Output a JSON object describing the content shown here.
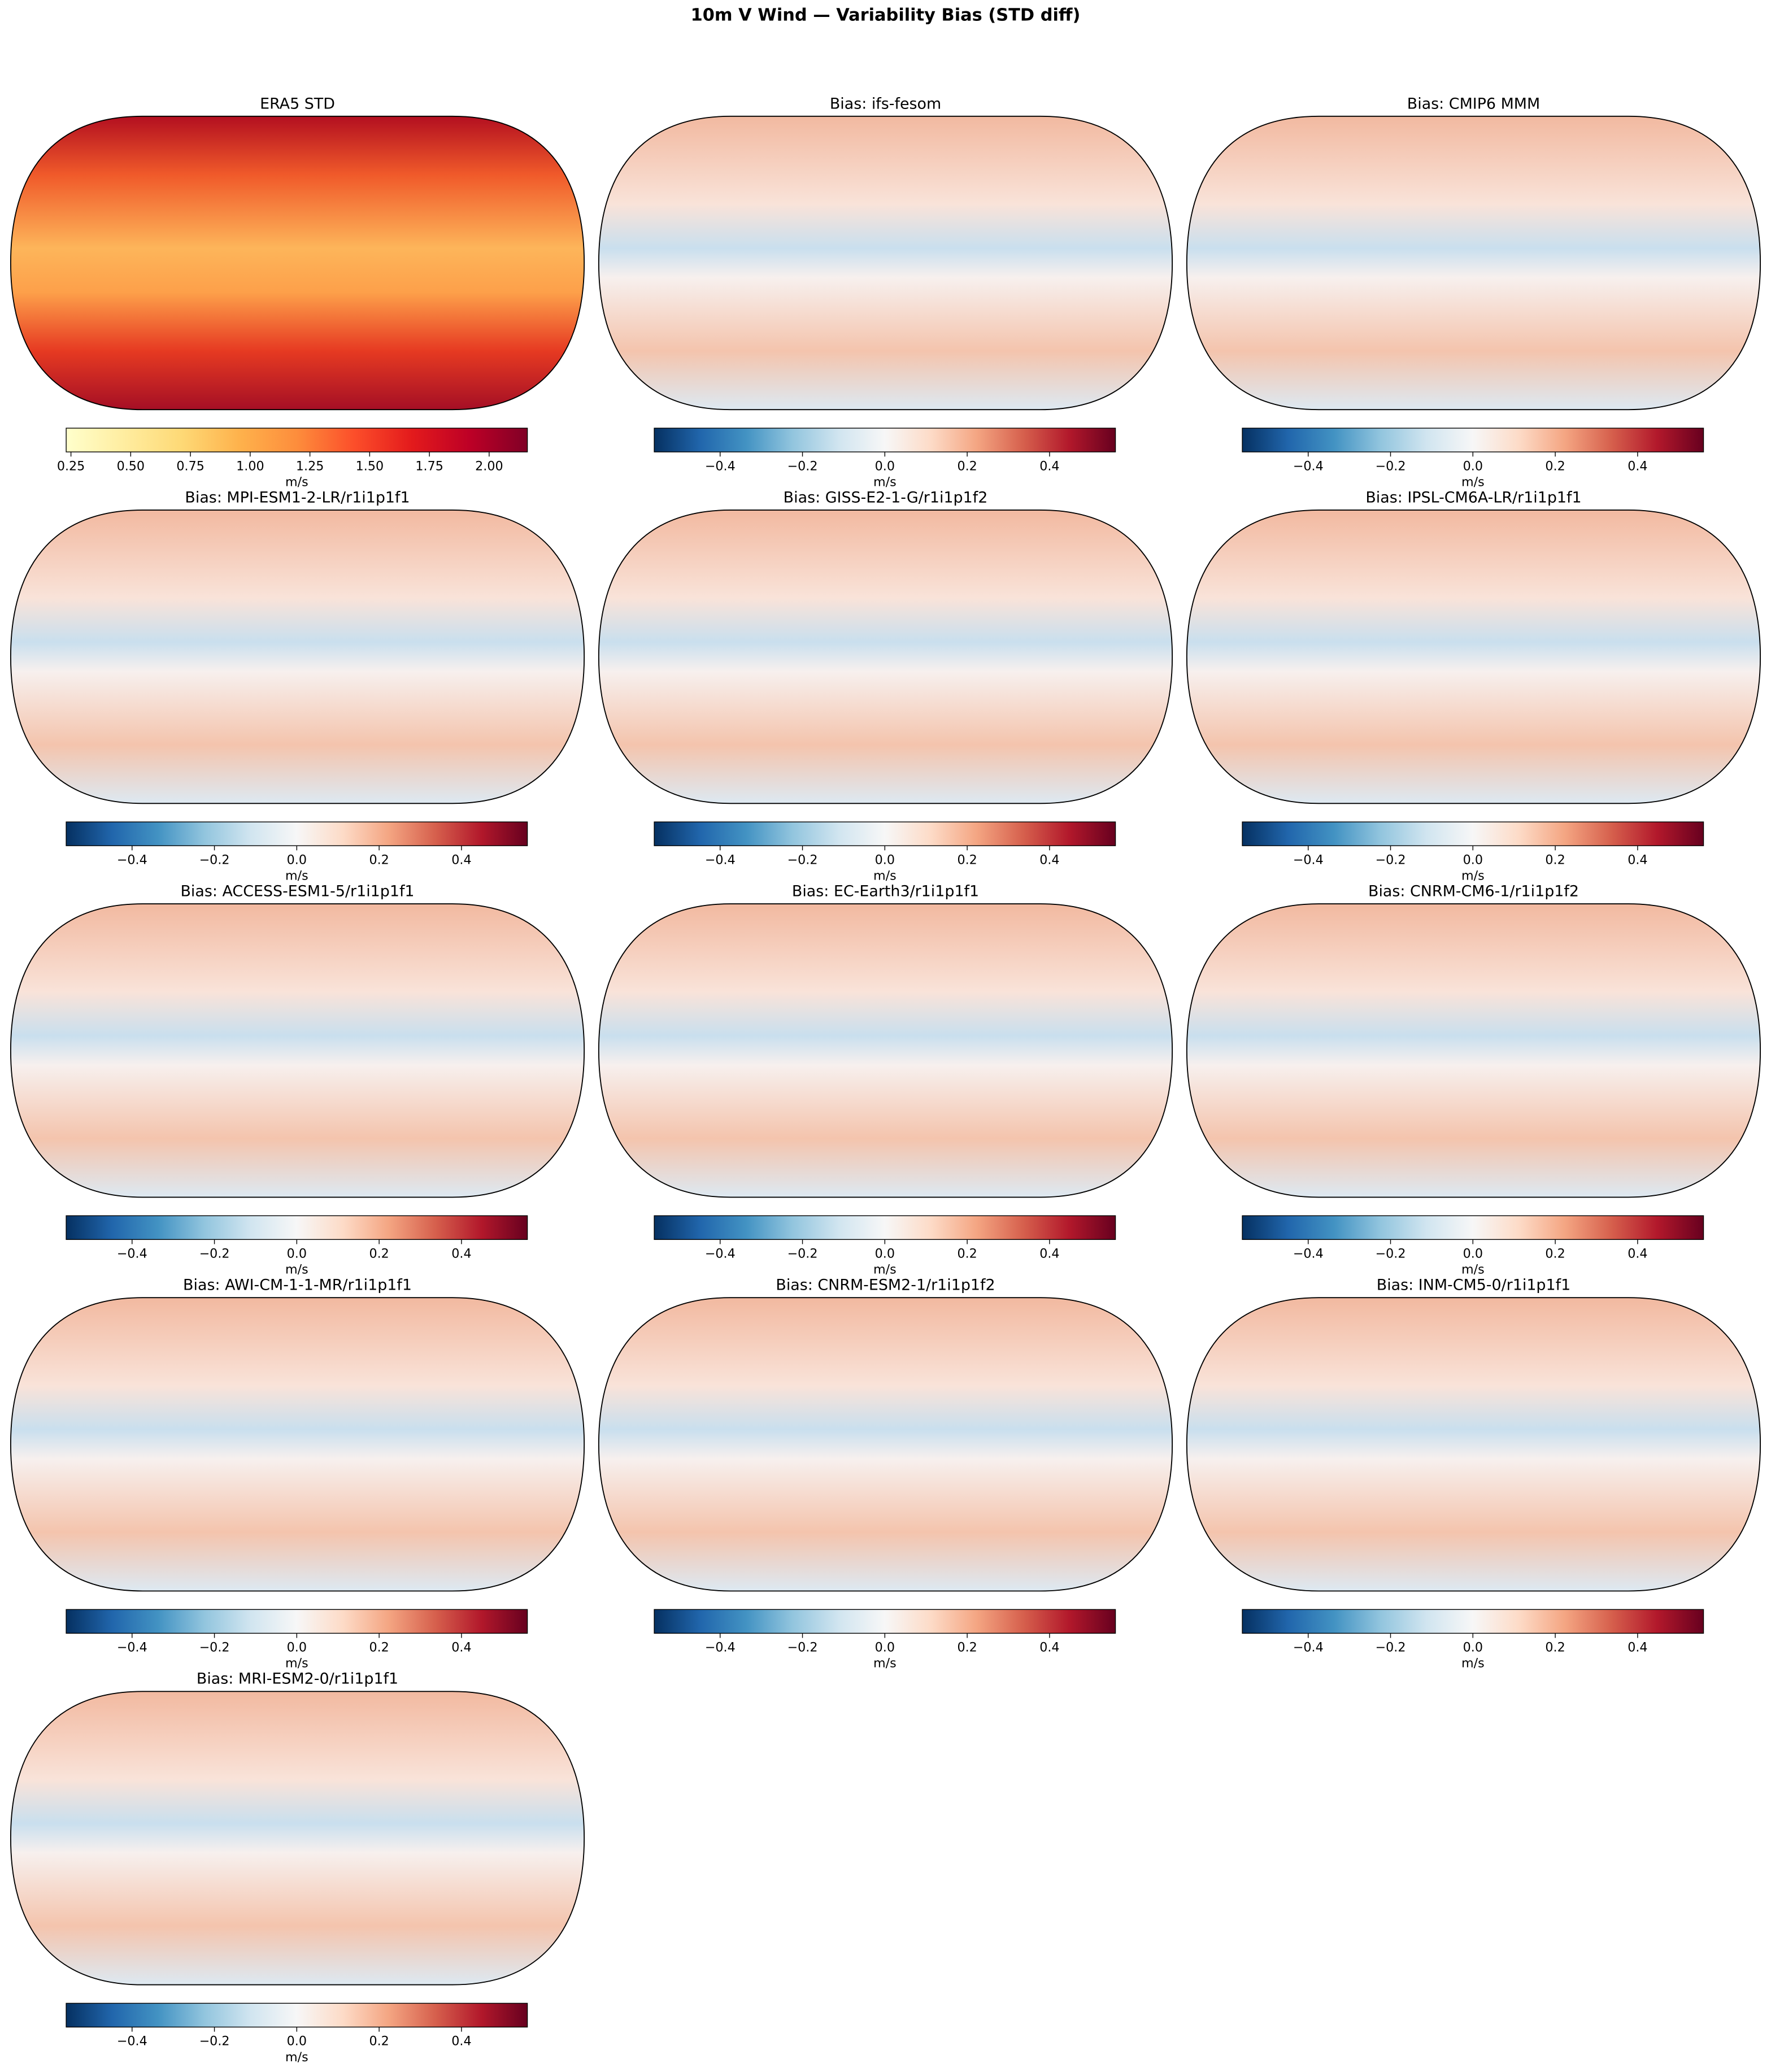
{
  "title": "10m V Wind — Variability Bias (STD diff)",
  "chart_data": [
    {
      "type": "map",
      "title": "ERA5 STD",
      "colorbar": {
        "label": "m/s",
        "xlim": [
          0.23,
          2.16
        ],
        "xticks": [
          0.25,
          {
            "value": 0.5,
            "label": "0.50"
          },
          0.75,
          {
            "value": 1,
            "label": "1.00"
          },
          1.25,
          {
            "value": 1.5,
            "label": "1.50"
          },
          1.75,
          {
            "value": 2,
            "label": "2.00"
          }
        ],
        "colormap": [
          "#ffffcc",
          "#ffeda0",
          "#fed976",
          "#feb24c",
          "#fd8d3c",
          "#fc4e2a",
          "#e31a1c",
          "#bd0026",
          "#800026"
        ]
      }
    },
    {
      "type": "map",
      "title": "Bias: ifs-fesom",
      "colorbar": {
        "label": "m/s",
        "xlim": [
          -0.56,
          0.56
        ],
        "xticks": [
          {
            "value": -0.4,
            "label": "−0.4"
          },
          {
            "value": -0.2,
            "label": "−0.2"
          },
          {
            "value": 0,
            "label": "0.0"
          },
          0.2,
          0.4
        ],
        "colormap": [
          "#053061",
          "#2166ac",
          "#4393c3",
          "#92c5de",
          "#d1e5f0",
          "#f7f7f7",
          "#fddbc7",
          "#f4a582",
          "#d6604d",
          "#b2182b",
          "#67001f"
        ]
      }
    },
    {
      "type": "map",
      "title": "Bias: CMIP6 MMM",
      "colorbar": {
        "label": "m/s",
        "xlim": [
          -0.56,
          0.56
        ],
        "xticks": [
          {
            "value": -0.4,
            "label": "−0.4"
          },
          {
            "value": -0.2,
            "label": "−0.2"
          },
          {
            "value": 0,
            "label": "0.0"
          },
          0.2,
          0.4
        ],
        "colormap": [
          "#053061",
          "#2166ac",
          "#4393c3",
          "#92c5de",
          "#d1e5f0",
          "#f7f7f7",
          "#fddbc7",
          "#f4a582",
          "#d6604d",
          "#b2182b",
          "#67001f"
        ]
      }
    },
    {
      "type": "map",
      "title": "Bias: MPI-ESM1-2-LR/r1i1p1f1",
      "colorbar": {
        "label": "m/s",
        "xlim": [
          -0.56,
          0.56
        ],
        "xticks": [
          {
            "value": -0.4,
            "label": "−0.4"
          },
          {
            "value": -0.2,
            "label": "−0.2"
          },
          {
            "value": 0,
            "label": "0.0"
          },
          0.2,
          0.4
        ],
        "colormap": [
          "#053061",
          "#2166ac",
          "#4393c3",
          "#92c5de",
          "#d1e5f0",
          "#f7f7f7",
          "#fddbc7",
          "#f4a582",
          "#d6604d",
          "#b2182b",
          "#67001f"
        ]
      }
    },
    {
      "type": "map",
      "title": "Bias: GISS-E2-1-G/r1i1p1f2",
      "colorbar": {
        "label": "m/s",
        "xlim": [
          -0.56,
          0.56
        ],
        "xticks": [
          {
            "value": -0.4,
            "label": "−0.4"
          },
          {
            "value": -0.2,
            "label": "−0.2"
          },
          {
            "value": 0,
            "label": "0.0"
          },
          0.2,
          0.4
        ],
        "colormap": [
          "#053061",
          "#2166ac",
          "#4393c3",
          "#92c5de",
          "#d1e5f0",
          "#f7f7f7",
          "#fddbc7",
          "#f4a582",
          "#d6604d",
          "#b2182b",
          "#67001f"
        ]
      }
    },
    {
      "type": "map",
      "title": "Bias: IPSL-CM6A-LR/r1i1p1f1",
      "colorbar": {
        "label": "m/s",
        "xlim": [
          -0.56,
          0.56
        ],
        "xticks": [
          {
            "value": -0.4,
            "label": "−0.4"
          },
          {
            "value": -0.2,
            "label": "−0.2"
          },
          {
            "value": 0,
            "label": "0.0"
          },
          0.2,
          0.4
        ],
        "colormap": [
          "#053061",
          "#2166ac",
          "#4393c3",
          "#92c5de",
          "#d1e5f0",
          "#f7f7f7",
          "#fddbc7",
          "#f4a582",
          "#d6604d",
          "#b2182b",
          "#67001f"
        ]
      }
    },
    {
      "type": "map",
      "title": "Bias: ACCESS-ESM1-5/r1i1p1f1",
      "colorbar": {
        "label": "m/s",
        "xlim": [
          -0.56,
          0.56
        ],
        "xticks": [
          {
            "value": -0.4,
            "label": "−0.4"
          },
          {
            "value": -0.2,
            "label": "−0.2"
          },
          {
            "value": 0,
            "label": "0.0"
          },
          0.2,
          0.4
        ],
        "colormap": [
          "#053061",
          "#2166ac",
          "#4393c3",
          "#92c5de",
          "#d1e5f0",
          "#f7f7f7",
          "#fddbc7",
          "#f4a582",
          "#d6604d",
          "#b2182b",
          "#67001f"
        ]
      }
    },
    {
      "type": "map",
      "title": "Bias: EC-Earth3/r1i1p1f1",
      "colorbar": {
        "label": "m/s",
        "xlim": [
          -0.56,
          0.56
        ],
        "xticks": [
          {
            "value": -0.4,
            "label": "−0.4"
          },
          {
            "value": -0.2,
            "label": "−0.2"
          },
          {
            "value": 0,
            "label": "0.0"
          },
          0.2,
          0.4
        ],
        "colormap": [
          "#053061",
          "#2166ac",
          "#4393c3",
          "#92c5de",
          "#d1e5f0",
          "#f7f7f7",
          "#fddbc7",
          "#f4a582",
          "#d6604d",
          "#b2182b",
          "#67001f"
        ]
      }
    },
    {
      "type": "map",
      "title": "Bias: CNRM-CM6-1/r1i1p1f2",
      "colorbar": {
        "label": "m/s",
        "xlim": [
          -0.56,
          0.56
        ],
        "xticks": [
          {
            "value": -0.4,
            "label": "−0.4"
          },
          {
            "value": -0.2,
            "label": "−0.2"
          },
          {
            "value": 0,
            "label": "0.0"
          },
          0.2,
          0.4
        ],
        "colormap": [
          "#053061",
          "#2166ac",
          "#4393c3",
          "#92c5de",
          "#d1e5f0",
          "#f7f7f7",
          "#fddbc7",
          "#f4a582",
          "#d6604d",
          "#b2182b",
          "#67001f"
        ]
      }
    },
    {
      "type": "map",
      "title": "Bias: AWI-CM-1-1-MR/r1i1p1f1",
      "colorbar": {
        "label": "m/s",
        "xlim": [
          -0.56,
          0.56
        ],
        "xticks": [
          {
            "value": -0.4,
            "label": "−0.4"
          },
          {
            "value": -0.2,
            "label": "−0.2"
          },
          {
            "value": 0,
            "label": "0.0"
          },
          0.2,
          0.4
        ],
        "colormap": [
          "#053061",
          "#2166ac",
          "#4393c3",
          "#92c5de",
          "#d1e5f0",
          "#f7f7f7",
          "#fddbc7",
          "#f4a582",
          "#d6604d",
          "#b2182b",
          "#67001f"
        ]
      }
    },
    {
      "type": "map",
      "title": "Bias: CNRM-ESM2-1/r1i1p1f2",
      "colorbar": {
        "label": "m/s",
        "xlim": [
          -0.56,
          0.56
        ],
        "xticks": [
          {
            "value": -0.4,
            "label": "−0.4"
          },
          {
            "value": -0.2,
            "label": "−0.2"
          },
          {
            "value": 0,
            "label": "0.0"
          },
          0.2,
          0.4
        ],
        "colormap": [
          "#053061",
          "#2166ac",
          "#4393c3",
          "#92c5de",
          "#d1e5f0",
          "#f7f7f7",
          "#fddbc7",
          "#f4a582",
          "#d6604d",
          "#b2182b",
          "#67001f"
        ]
      }
    },
    {
      "type": "map",
      "title": "Bias: INM-CM5-0/r1i1p1f1",
      "colorbar": {
        "label": "m/s",
        "xlim": [
          -0.56,
          0.56
        ],
        "xticks": [
          {
            "value": -0.4,
            "label": "−0.4"
          },
          {
            "value": -0.2,
            "label": "−0.2"
          },
          {
            "value": 0,
            "label": "0.0"
          },
          0.2,
          0.4
        ],
        "colormap": [
          "#053061",
          "#2166ac",
          "#4393c3",
          "#92c5de",
          "#d1e5f0",
          "#f7f7f7",
          "#fddbc7",
          "#f4a582",
          "#d6604d",
          "#b2182b",
          "#67001f"
        ]
      }
    },
    {
      "type": "map",
      "title": "Bias: MRI-ESM2-0/r1i1p1f1",
      "colorbar": {
        "label": "m/s",
        "xlim": [
          -0.56,
          0.56
        ],
        "xticks": [
          {
            "value": -0.4,
            "label": "−0.4"
          },
          {
            "value": -0.2,
            "label": "−0.2"
          },
          {
            "value": 0,
            "label": "0.0"
          },
          0.2,
          0.4
        ],
        "colormap": [
          "#053061",
          "#2166ac",
          "#4393c3",
          "#92c5de",
          "#d1e5f0",
          "#f7f7f7",
          "#fddbc7",
          "#f4a582",
          "#d6604d",
          "#b2182b",
          "#67001f"
        ]
      }
    }
  ]
}
